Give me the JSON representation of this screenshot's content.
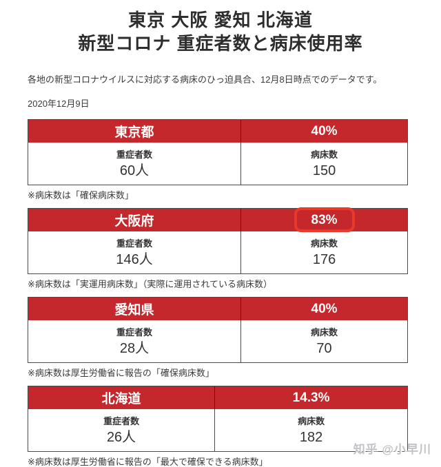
{
  "page": {
    "title_line1": "東京 大阪 愛知 北海道",
    "title_line2": "新型コロナ 重症者数と病床使用率",
    "subtitle": "各地の新型コロナウイルスに対応する病床のひっ迫具合、12月8日時点でのデータです。",
    "date": "2020年12月9日",
    "watermark": "知乎 @小早川"
  },
  "colors": {
    "header_red": "#c5282c",
    "highlight_red": "#e8392b",
    "text": "#333333",
    "border": "#4a4a4a",
    "watermark": "#c2c2c7"
  },
  "tables": [
    {
      "prefecture": "東京都",
      "rate": "40%",
      "severe_label": "重症者数",
      "severe_value": "60人",
      "beds_label": "病床数",
      "beds_value": "150",
      "note": "※病床数は「確保病床数」",
      "highlighted": false
    },
    {
      "prefecture": "大阪府",
      "rate": "83%",
      "severe_label": "重症者数",
      "severe_value": "146人",
      "beds_label": "病床数",
      "beds_value": "176",
      "note": "※病床数は「実運用病床数」（実際に運用されている病床数）",
      "highlighted": true
    },
    {
      "prefecture": "愛知県",
      "rate": "40%",
      "severe_label": "重症者数",
      "severe_value": "28人",
      "beds_label": "病床数",
      "beds_value": "70",
      "note": "※病床数は厚生労働省に報告の「確保病床数」",
      "highlighted": false
    },
    {
      "prefecture": "北海道",
      "rate": "14.3%",
      "severe_label": "重症者数",
      "severe_value": "26人",
      "beds_label": "病床数",
      "beds_value": "182",
      "note": "※病床数は厚生労働省に報告の「最大で確保できる病床数」",
      "highlighted": false
    }
  ]
}
